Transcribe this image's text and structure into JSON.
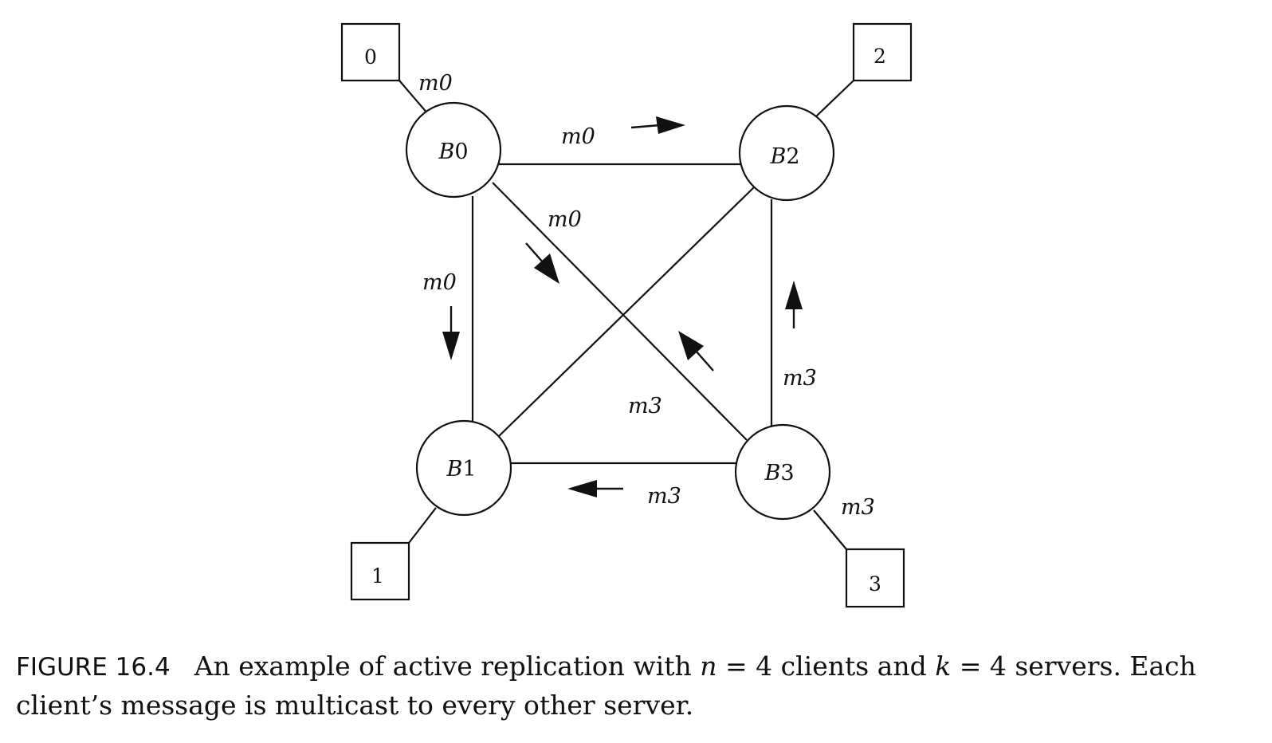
{
  "diagram": {
    "servers": [
      {
        "id": "B0",
        "label_base": "B",
        "label_num": "0"
      },
      {
        "id": "B1",
        "label_base": "B",
        "label_num": "1"
      },
      {
        "id": "B2",
        "label_base": "B",
        "label_num": "2"
      },
      {
        "id": "B3",
        "label_base": "B",
        "label_num": "3"
      }
    ],
    "clients": [
      {
        "id": "c0",
        "label": "0"
      },
      {
        "id": "c1",
        "label": "1"
      },
      {
        "id": "c2",
        "label": "2"
      },
      {
        "id": "c3",
        "label": "3"
      }
    ],
    "messages": {
      "m0_client": "m0",
      "m0_top": "m0",
      "m0_diag": "m0",
      "m0_left": "m0",
      "m3_right": "m3",
      "m3_center": "m3",
      "m3_bottom": "m3",
      "m3_client": "m3"
    }
  },
  "caption": {
    "figure_label": "FIGURE 16.4",
    "text_1": "An example of active replication with ",
    "var_n": "n",
    "text_2": " = 4 clients and ",
    "var_k": "k",
    "text_3": " = 4 servers. Each client’s message is multicast to every other server."
  }
}
